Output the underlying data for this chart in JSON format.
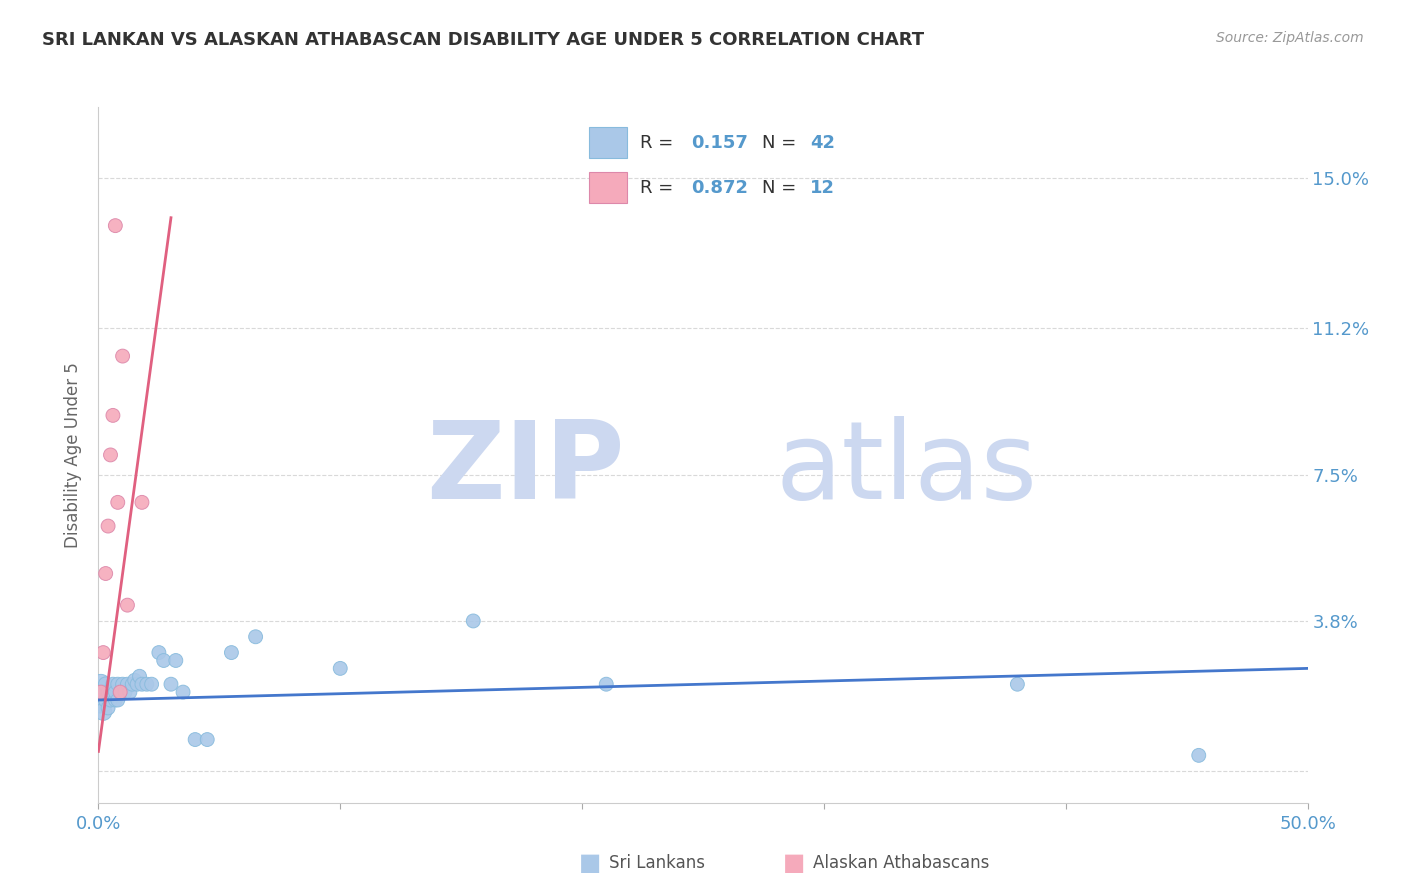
{
  "title": "SRI LANKAN VS ALASKAN ATHABASCAN DISABILITY AGE UNDER 5 CORRELATION CHART",
  "source": "Source: ZipAtlas.com",
  "ylabel_label": "Disability Age Under 5",
  "xlim": [
    0,
    0.5
  ],
  "ylim": [
    -0.008,
    0.168
  ],
  "ytick_positions": [
    0.0,
    0.038,
    0.075,
    0.112,
    0.15
  ],
  "yticklabels": [
    "",
    "3.8%",
    "7.5%",
    "11.2%",
    "15.0%"
  ],
  "sri_lankan_color": "#aac8e8",
  "athabascan_color": "#f5aabb",
  "sri_lankan_line_color": "#4477cc",
  "athabascan_line_color": "#e06080",
  "sri_lankan_R": 0.157,
  "sri_lankan_N": 42,
  "athabascan_R": 0.872,
  "athabascan_N": 12,
  "watermark_zip": "ZIP",
  "watermark_atlas": "atlas",
  "watermark_color": "#ccd8f0",
  "background_color": "#ffffff",
  "grid_color": "#d0d0d0",
  "title_color": "#333333",
  "axis_tick_color": "#5599cc",
  "sri_lankans_x": [
    0.001,
    0.001,
    0.002,
    0.002,
    0.003,
    0.003,
    0.004,
    0.004,
    0.005,
    0.005,
    0.006,
    0.006,
    0.007,
    0.007,
    0.008,
    0.008,
    0.009,
    0.01,
    0.011,
    0.012,
    0.013,
    0.014,
    0.015,
    0.016,
    0.017,
    0.018,
    0.02,
    0.022,
    0.025,
    0.027,
    0.03,
    0.032,
    0.035,
    0.04,
    0.045,
    0.055,
    0.065,
    0.1,
    0.155,
    0.21,
    0.38,
    0.455
  ],
  "sri_lankans_y": [
    0.018,
    0.022,
    0.015,
    0.02,
    0.018,
    0.022,
    0.016,
    0.02,
    0.018,
    0.02,
    0.02,
    0.022,
    0.018,
    0.02,
    0.018,
    0.022,
    0.02,
    0.022,
    0.02,
    0.022,
    0.02,
    0.022,
    0.023,
    0.022,
    0.024,
    0.022,
    0.022,
    0.022,
    0.03,
    0.028,
    0.022,
    0.028,
    0.02,
    0.008,
    0.008,
    0.03,
    0.034,
    0.026,
    0.038,
    0.022,
    0.022,
    0.004
  ],
  "sri_lankans_size": [
    350,
    200,
    150,
    120,
    110,
    110,
    100,
    100,
    100,
    100,
    100,
    100,
    100,
    100,
    100,
    100,
    100,
    100,
    100,
    100,
    100,
    100,
    100,
    100,
    100,
    100,
    100,
    100,
    100,
    100,
    100,
    100,
    100,
    100,
    100,
    100,
    100,
    100,
    100,
    100,
    100,
    100
  ],
  "athabascans_x": [
    0.001,
    0.002,
    0.003,
    0.004,
    0.005,
    0.006,
    0.007,
    0.008,
    0.009,
    0.01,
    0.012,
    0.018
  ],
  "athabascans_y": [
    0.02,
    0.03,
    0.05,
    0.062,
    0.08,
    0.09,
    0.138,
    0.068,
    0.02,
    0.105,
    0.042,
    0.068
  ],
  "athabascans_size": [
    100,
    100,
    100,
    100,
    100,
    100,
    100,
    100,
    100,
    100,
    100,
    100
  ],
  "sl_trend_x": [
    0.0,
    0.5
  ],
  "sl_trend_y": [
    0.018,
    0.026
  ],
  "at_trend_x": [
    0.0,
    0.03
  ],
  "at_trend_y": [
    0.005,
    0.14
  ]
}
